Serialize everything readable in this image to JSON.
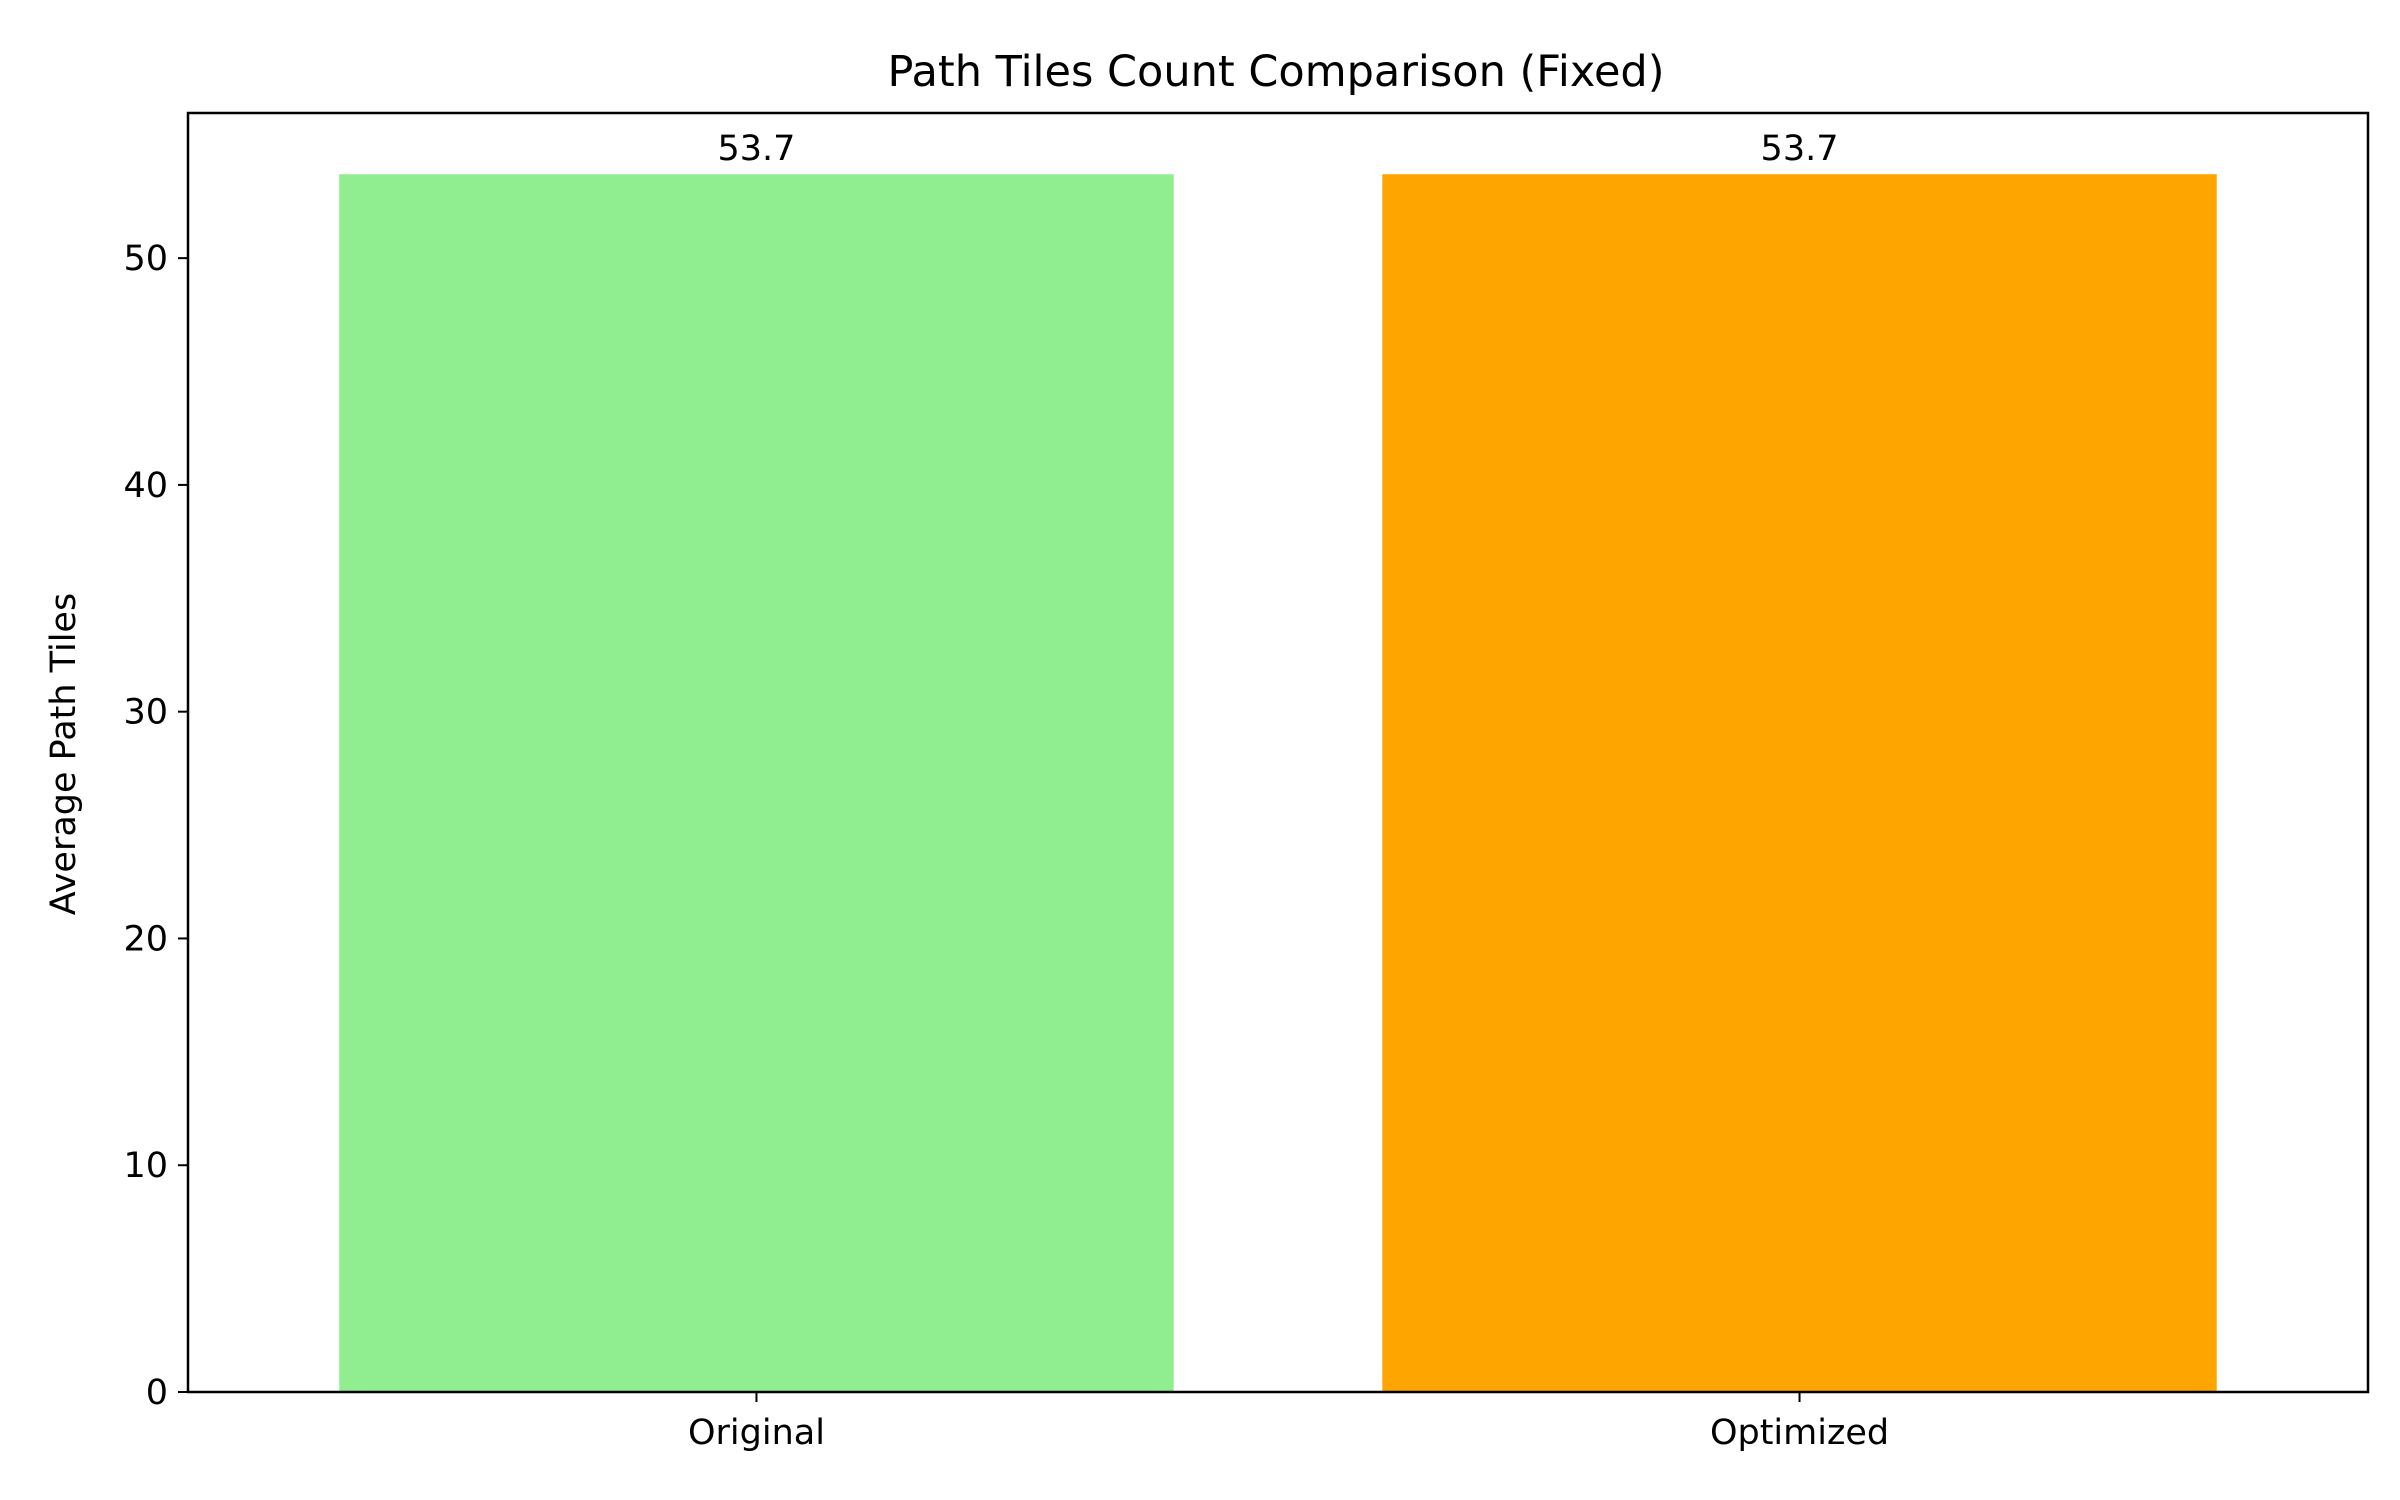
{
  "chart_data": {
    "type": "bar",
    "title": "Path Tiles Count Comparison (Fixed)",
    "xlabel": "",
    "ylabel": "Average Path Tiles",
    "categories": [
      "Original",
      "Optimized"
    ],
    "values": [
      53.7,
      53.7
    ],
    "value_labels": [
      "53.7",
      "53.7"
    ],
    "colors": [
      "#90ee90",
      "#ffa500"
    ],
    "ylim": [
      0,
      56.4
    ],
    "yticks": [
      0,
      10,
      20,
      30,
      40,
      50
    ],
    "grid": false,
    "legend": "none"
  }
}
